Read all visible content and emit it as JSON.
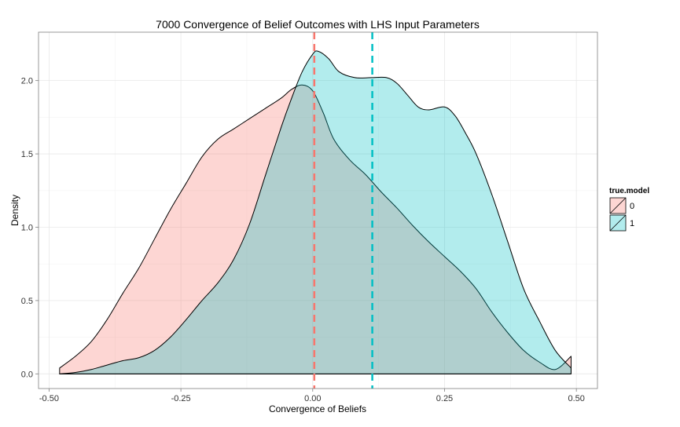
{
  "chart_data": {
    "type": "area",
    "subtype": "density",
    "title": "7000 Convergence of Belief Outcomes with LHS Input Parameters",
    "xlabel": "Convergence of Beliefs",
    "ylabel": "Density",
    "xlim": [
      -0.52,
      0.54
    ],
    "ylim": [
      -0.1,
      2.33
    ],
    "x_ticks": [
      -0.5,
      -0.25,
      0.0,
      0.25,
      0.5
    ],
    "x_tick_labels": [
      "-0.50",
      "-0.25",
      "0.00",
      "0.25",
      "0.50"
    ],
    "y_ticks": [
      0,
      0.5,
      1.0,
      1.5,
      2.0
    ],
    "y_tick_labels": [
      "0.0",
      "0.5",
      "1.0",
      "1.5",
      "2.0"
    ],
    "grid": true,
    "legend": {
      "title": "true.model",
      "placement": "right",
      "entries": [
        "0",
        "1"
      ]
    },
    "series": [
      {
        "name": "0",
        "fill": "#F8766D",
        "fill_opacity": 0.3,
        "mean_line": 0.003,
        "x": [
          -0.48,
          -0.45,
          -0.42,
          -0.39,
          -0.36,
          -0.33,
          -0.3,
          -0.27,
          -0.24,
          -0.21,
          -0.18,
          -0.15,
          -0.12,
          -0.09,
          -0.06,
          -0.04,
          -0.02,
          0.0,
          0.02,
          0.04,
          0.07,
          0.1,
          0.13,
          0.16,
          0.19,
          0.22,
          0.25,
          0.28,
          0.31,
          0.34,
          0.37,
          0.4,
          0.43,
          0.46,
          0.49
        ],
        "y": [
          0.04,
          0.12,
          0.22,
          0.37,
          0.55,
          0.72,
          0.92,
          1.12,
          1.3,
          1.48,
          1.6,
          1.67,
          1.74,
          1.81,
          1.88,
          1.94,
          1.97,
          1.93,
          1.78,
          1.6,
          1.46,
          1.36,
          1.24,
          1.13,
          1.01,
          0.9,
          0.8,
          0.7,
          0.58,
          0.42,
          0.28,
          0.16,
          0.08,
          0.03,
          0.12
        ]
      },
      {
        "name": "1",
        "fill": "#00BFC4",
        "fill_opacity": 0.3,
        "mean_line": 0.113,
        "x": [
          -0.48,
          -0.45,
          -0.42,
          -0.39,
          -0.36,
          -0.33,
          -0.3,
          -0.27,
          -0.24,
          -0.21,
          -0.18,
          -0.15,
          -0.12,
          -0.09,
          -0.06,
          -0.04,
          -0.02,
          0.0,
          0.01,
          0.03,
          0.05,
          0.08,
          0.11,
          0.14,
          0.16,
          0.18,
          0.2,
          0.22,
          0.25,
          0.27,
          0.29,
          0.31,
          0.34,
          0.37,
          0.4,
          0.43,
          0.46,
          0.49
        ],
        "y": [
          0.0,
          0.01,
          0.03,
          0.06,
          0.09,
          0.11,
          0.16,
          0.25,
          0.37,
          0.5,
          0.62,
          0.78,
          1.02,
          1.35,
          1.68,
          1.88,
          2.06,
          2.18,
          2.2,
          2.15,
          2.06,
          2.02,
          2.02,
          2.02,
          1.98,
          1.9,
          1.82,
          1.8,
          1.82,
          1.76,
          1.64,
          1.5,
          1.22,
          0.9,
          0.58,
          0.36,
          0.16,
          0.04
        ]
      }
    ]
  }
}
